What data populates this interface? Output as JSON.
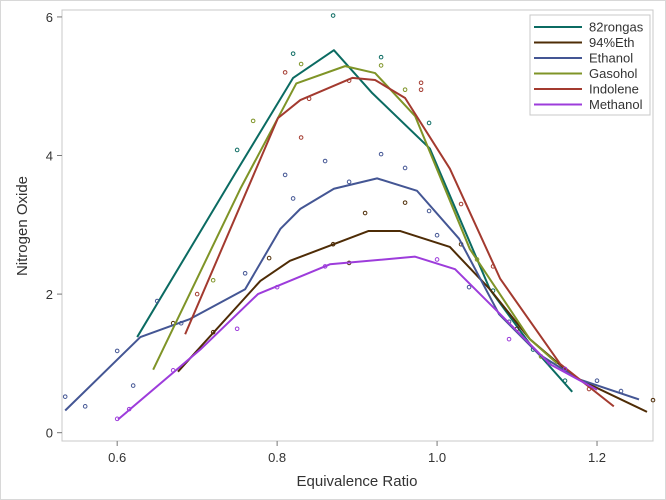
{
  "chart_data": {
    "type": "line",
    "title": "",
    "xlabel": "Equivalence Ratio",
    "ylabel": "Nitrogen Oxide",
    "xlim": [
      0.531,
      1.27
    ],
    "ylim": [
      -0.12,
      6.1
    ],
    "xticks": [
      0.6,
      0.8,
      1.0,
      1.2
    ],
    "xtick_labels": [
      "0.6",
      "0.8",
      "1.0",
      "1.2"
    ],
    "yticks": [
      0,
      2,
      4,
      6
    ],
    "ytick_labels": [
      "0",
      "2",
      "4",
      "6"
    ],
    "grid": false,
    "legend_position": "top-right",
    "series": [
      {
        "name": "82rongas",
        "color": "#0b6b62",
        "x": [
          0.625,
          0.7475,
          0.82,
          0.871,
          0.919,
          0.991,
          1.066,
          1.116,
          1.169
        ],
        "y": [
          1.38,
          3.74,
          5.12,
          5.52,
          4.9,
          4.1,
          2.07,
          1.28,
          0.59
        ],
        "points": [
          [
            0.87,
            6.02
          ],
          [
            0.82,
            5.47
          ],
          [
            0.93,
            5.42
          ],
          [
            0.75,
            4.08
          ],
          [
            0.99,
            4.47
          ],
          [
            1.07,
            2.05
          ],
          [
            1.12,
            1.2
          ],
          [
            1.16,
            0.75
          ]
        ]
      },
      {
        "name": "94%Eth",
        "color": "#4e2c06",
        "x": [
          0.676,
          0.779,
          0.816,
          0.914,
          0.954,
          1.016,
          1.066,
          1.116,
          1.172,
          1.2625
        ],
        "y": [
          0.88,
          2.19,
          2.48,
          2.91,
          2.91,
          2.68,
          2.07,
          1.35,
          0.8,
          0.3
        ],
        "points": [
          [
            0.67,
            1.58
          ],
          [
            0.72,
            1.45
          ],
          [
            0.79,
            2.52
          ],
          [
            0.87,
            2.72
          ],
          [
            0.89,
            2.45
          ],
          [
            0.91,
            3.17
          ],
          [
            0.96,
            3.32
          ],
          [
            1.03,
            2.72
          ],
          [
            1.1,
            1.5
          ],
          [
            1.27,
            0.47
          ]
        ]
      },
      {
        "name": "Ethanol",
        "color": "#445694",
        "x": [
          0.535,
          0.629,
          0.691,
          0.76,
          0.804,
          0.829,
          0.871,
          0.925,
          0.975,
          1.0275,
          1.0775,
          1.1275,
          1.1775,
          1.2525
        ],
        "y": [
          0.32,
          1.38,
          1.64,
          2.07,
          2.94,
          3.23,
          3.52,
          3.67,
          3.49,
          2.8,
          1.71,
          1.13,
          0.77,
          0.48
        ],
        "points": [
          [
            0.535,
            0.52
          ],
          [
            0.56,
            0.38
          ],
          [
            0.6,
            1.18
          ],
          [
            0.62,
            0.68
          ],
          [
            0.65,
            1.9
          ],
          [
            0.68,
            1.58
          ],
          [
            0.76,
            2.3
          ],
          [
            0.81,
            3.72
          ],
          [
            0.82,
            3.38
          ],
          [
            0.86,
            3.92
          ],
          [
            0.89,
            3.62
          ],
          [
            0.93,
            4.02
          ],
          [
            0.96,
            3.82
          ],
          [
            0.99,
            3.2
          ],
          [
            1.0,
            2.85
          ],
          [
            1.04,
            2.1
          ],
          [
            1.09,
            1.6
          ],
          [
            1.14,
            1.0
          ],
          [
            1.2,
            0.75
          ],
          [
            1.23,
            0.6
          ]
        ]
      },
      {
        "name": "Gasohol",
        "color": "#7f9427",
        "x": [
          0.645,
          0.754,
          0.824,
          0.885,
          0.9225,
          0.9725,
          1.041,
          1.116,
          1.15
        ],
        "y": [
          0.91,
          3.52,
          5.04,
          5.29,
          5.19,
          4.57,
          2.65,
          1.35,
          1.0
        ],
        "points": [
          [
            0.72,
            2.2
          ],
          [
            0.77,
            4.5
          ],
          [
            0.83,
            5.32
          ],
          [
            0.93,
            5.3
          ],
          [
            0.96,
            4.95
          ],
          [
            1.05,
            2.5
          ],
          [
            1.13,
            1.1
          ]
        ]
      },
      {
        "name": "Indolene",
        "color": "#a33a2f",
        "x": [
          0.685,
          0.801,
          0.829,
          0.894,
          0.9225,
          0.96,
          1.016,
          1.079,
          1.154,
          1.221
        ],
        "y": [
          1.42,
          4.54,
          4.8,
          5.12,
          5.09,
          4.83,
          3.81,
          2.22,
          0.99,
          0.38
        ],
        "points": [
          [
            0.7,
            2.0
          ],
          [
            0.81,
            5.2
          ],
          [
            0.83,
            4.26
          ],
          [
            0.84,
            4.82
          ],
          [
            0.89,
            5.08
          ],
          [
            0.98,
            5.05
          ],
          [
            0.98,
            4.95
          ],
          [
            1.03,
            3.3
          ],
          [
            1.07,
            2.4
          ],
          [
            1.19,
            0.63
          ]
        ]
      },
      {
        "name": "Methanol",
        "color": "#9d3cdb",
        "x": [
          0.601,
          0.704,
          0.776,
          0.866,
          0.9725,
          1.0225,
          1.079,
          1.141,
          1.2
        ],
        "y": [
          0.19,
          1.2,
          2.0,
          2.43,
          2.54,
          2.36,
          1.71,
          0.99,
          0.62
        ],
        "points": [
          [
            0.6,
            0.2
          ],
          [
            0.615,
            0.34
          ],
          [
            0.67,
            0.9
          ],
          [
            0.75,
            1.5
          ],
          [
            0.8,
            2.1
          ],
          [
            0.86,
            2.4
          ],
          [
            1.0,
            2.5
          ],
          [
            1.09,
            1.35
          ],
          [
            1.16,
            0.92
          ]
        ]
      }
    ]
  }
}
